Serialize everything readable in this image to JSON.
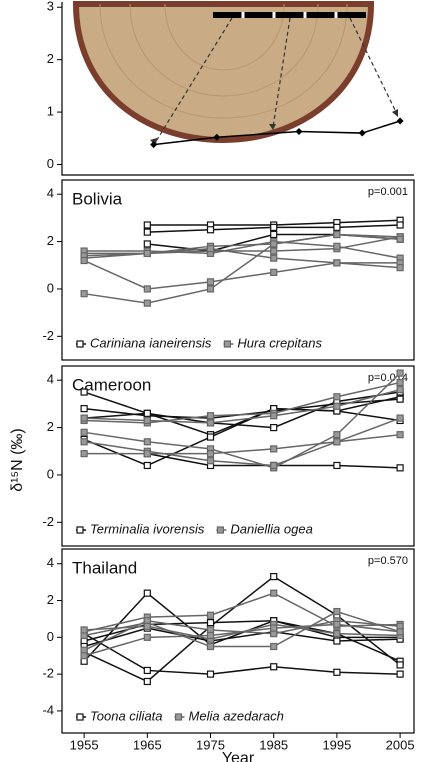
{
  "ylabel": "δ¹⁵N (‰)",
  "chart_data": [
    {
      "type": "line",
      "x": [
        1966,
        1976,
        1989,
        1999,
        2005
      ],
      "xlim": [
        1951.5,
        2007.2
      ],
      "ylim": [
        -0.2,
        3.1
      ],
      "yticks": [
        0,
        1,
        2,
        3
      ],
      "series": [
        {
          "color": "#000000",
          "marker": "diamond",
          "values": [
            0.38,
            0.52,
            0.63,
            0.6,
            0.83
          ]
        }
      ]
    },
    {
      "type": "line",
      "title": "Bolivia",
      "annotation": "p=0.001",
      "x": [
        1955,
        1965,
        1975,
        1985,
        1995,
        2005
      ],
      "xlim": [
        1951.5,
        2007.2
      ],
      "ylim": [
        -3,
        4.6
      ],
      "yticks": [
        -2,
        0,
        2,
        4
      ],
      "legend": [
        {
          "name": "Cariniana ianeirensis",
          "color": "#111111",
          "marker": "open"
        },
        {
          "name": "Hura crepitans",
          "color": "#666666",
          "marker": "filled"
        }
      ],
      "series": [
        {
          "color": "#111111",
          "marker": "open",
          "values": [
            null,
            2.7,
            2.7,
            2.7,
            2.8,
            2.9
          ]
        },
        {
          "color": "#111111",
          "marker": "open",
          "values": [
            null,
            2.4,
            2.5,
            2.6,
            2.6,
            2.7
          ]
        },
        {
          "color": "#111111",
          "marker": "open",
          "values": [
            null,
            1.9,
            1.6,
            2.3,
            2.3,
            2.1
          ]
        },
        {
          "color": "#666666",
          "marker": "filled",
          "values": [
            1.5,
            1.5,
            1.8,
            1.9,
            2.3,
            2.2
          ]
        },
        {
          "color": "#666666",
          "marker": "filled",
          "values": [
            1.3,
            1.5,
            1.6,
            1.6,
            1.7,
            2.2
          ]
        },
        {
          "color": "#666666",
          "marker": "filled",
          "values": [
            1.6,
            1.6,
            1.5,
            2.0,
            1.8,
            1.3
          ]
        },
        {
          "color": "#666666",
          "marker": "filled",
          "values": [
            1.4,
            1.5,
            1.7,
            1.3,
            1.1,
            1.1
          ]
        },
        {
          "color": "#666666",
          "marker": "filled",
          "values": [
            1.2,
            0.0,
            0.3,
            0.7,
            1.1,
            0.9
          ]
        },
        {
          "color": "#666666",
          "marker": "filled",
          "values": [
            -0.2,
            -0.6,
            0.0,
            1.9,
            2.3,
            2.1
          ]
        }
      ]
    },
    {
      "type": "line",
      "title": "Cameroon",
      "annotation": "p=0.014",
      "x": [
        1955,
        1965,
        1975,
        1985,
        1995,
        2005
      ],
      "xlim": [
        1951.5,
        2007.2
      ],
      "ylim": [
        -3,
        4.6
      ],
      "yticks": [
        -2,
        0,
        2,
        4
      ],
      "legend": [
        {
          "name": "Terminalia ivorensis",
          "color": "#111111",
          "marker": "open"
        },
        {
          "name": "Daniellia ogea",
          "color": "#666666",
          "marker": "filled"
        }
      ],
      "series": [
        {
          "color": "#111111",
          "marker": "open",
          "values": [
            3.5,
            2.6,
            1.7,
            2.8,
            2.7,
            3.3
          ]
        },
        {
          "color": "#111111",
          "marker": "open",
          "values": [
            2.8,
            2.5,
            2.4,
            2.7,
            3.0,
            3.2
          ]
        },
        {
          "color": "#111111",
          "marker": "open",
          "values": [
            2.4,
            2.6,
            2.2,
            2.0,
            3.1,
            3.5
          ]
        },
        {
          "color": "#111111",
          "marker": "open",
          "values": [
            1.5,
            0.4,
            1.6,
            2.8,
            2.7,
            2.3
          ]
        },
        {
          "color": "#111111",
          "marker": "open",
          "values": [
            null,
            0.9,
            0.4,
            0.4,
            0.4,
            0.3
          ]
        },
        {
          "color": "#666666",
          "marker": "filled",
          "values": [
            2.3,
            2.2,
            2.5,
            2.6,
            3.3,
            3.9
          ]
        },
        {
          "color": "#666666",
          "marker": "filled",
          "values": [
            2.4,
            2.3,
            2.2,
            2.5,
            2.9,
            3.6
          ]
        },
        {
          "color": "#666666",
          "marker": "filled",
          "values": [
            1.8,
            1.4,
            1.1,
            0.3,
            1.7,
            4.3
          ]
        },
        {
          "color": "#666666",
          "marker": "filled",
          "values": [
            1.4,
            1.0,
            0.6,
            0.4,
            1.4,
            2.4
          ]
        },
        {
          "color": "#666666",
          "marker": "filled",
          "values": [
            0.9,
            0.9,
            0.9,
            1.1,
            1.4,
            1.7
          ]
        }
      ]
    },
    {
      "type": "line",
      "title": "Thailand",
      "annotation": "p=0.570",
      "xlabel": "Year",
      "x": [
        1955,
        1965,
        1975,
        1985,
        1995,
        2005
      ],
      "xlim": [
        1951.5,
        2007.2
      ],
      "xticks": [
        1955,
        1965,
        1975,
        1985,
        1995,
        2005
      ],
      "ylim": [
        -5.2,
        4.8
      ],
      "yticks": [
        -4,
        -2,
        0,
        2,
        4
      ],
      "legend": [
        {
          "name": "Toona ciliata",
          "color": "#111111",
          "marker": "open"
        },
        {
          "name": "Melia azedarach",
          "color": "#666666",
          "marker": "filled"
        }
      ],
      "series": [
        {
          "color": "#111111",
          "marker": "open",
          "values": [
            -1.3,
            2.4,
            -0.4,
            0.9,
            0.2,
            -1.3
          ]
        },
        {
          "color": "#111111",
          "marker": "open",
          "values": [
            -0.8,
            -2.4,
            0.6,
            3.3,
            1.2,
            -1.5
          ]
        },
        {
          "color": "#111111",
          "marker": "open",
          "values": [
            0.2,
            -1.8,
            -2.0,
            -1.6,
            -1.9,
            -2.0
          ]
        },
        {
          "color": "#111111",
          "marker": "open",
          "values": [
            -0.2,
            0.7,
            0.8,
            0.9,
            0.0,
            0.0
          ]
        },
        {
          "color": "#111111",
          "marker": "open",
          "values": [
            -0.5,
            0.5,
            -0.2,
            0.3,
            -0.2,
            -0.1
          ]
        },
        {
          "color": "#666666",
          "marker": "filled",
          "values": [
            0.3,
            1.1,
            1.2,
            2.4,
            0.6,
            0.7
          ]
        },
        {
          "color": "#666666",
          "marker": "filled",
          "values": [
            0.1,
            0.8,
            -0.5,
            -0.5,
            1.4,
            0.3
          ]
        },
        {
          "color": "#666666",
          "marker": "filled",
          "values": [
            -0.7,
            0.9,
            0.4,
            0.2,
            0.9,
            0.6
          ]
        },
        {
          "color": "#666666",
          "marker": "filled",
          "values": [
            0.4,
            0.6,
            -0.1,
            0.7,
            0.2,
            0.1
          ]
        },
        {
          "color": "#666666",
          "marker": "filled",
          "values": [
            -1.0,
            0.0,
            0.1,
            0.5,
            0.7,
            0.3
          ]
        }
      ]
    }
  ]
}
